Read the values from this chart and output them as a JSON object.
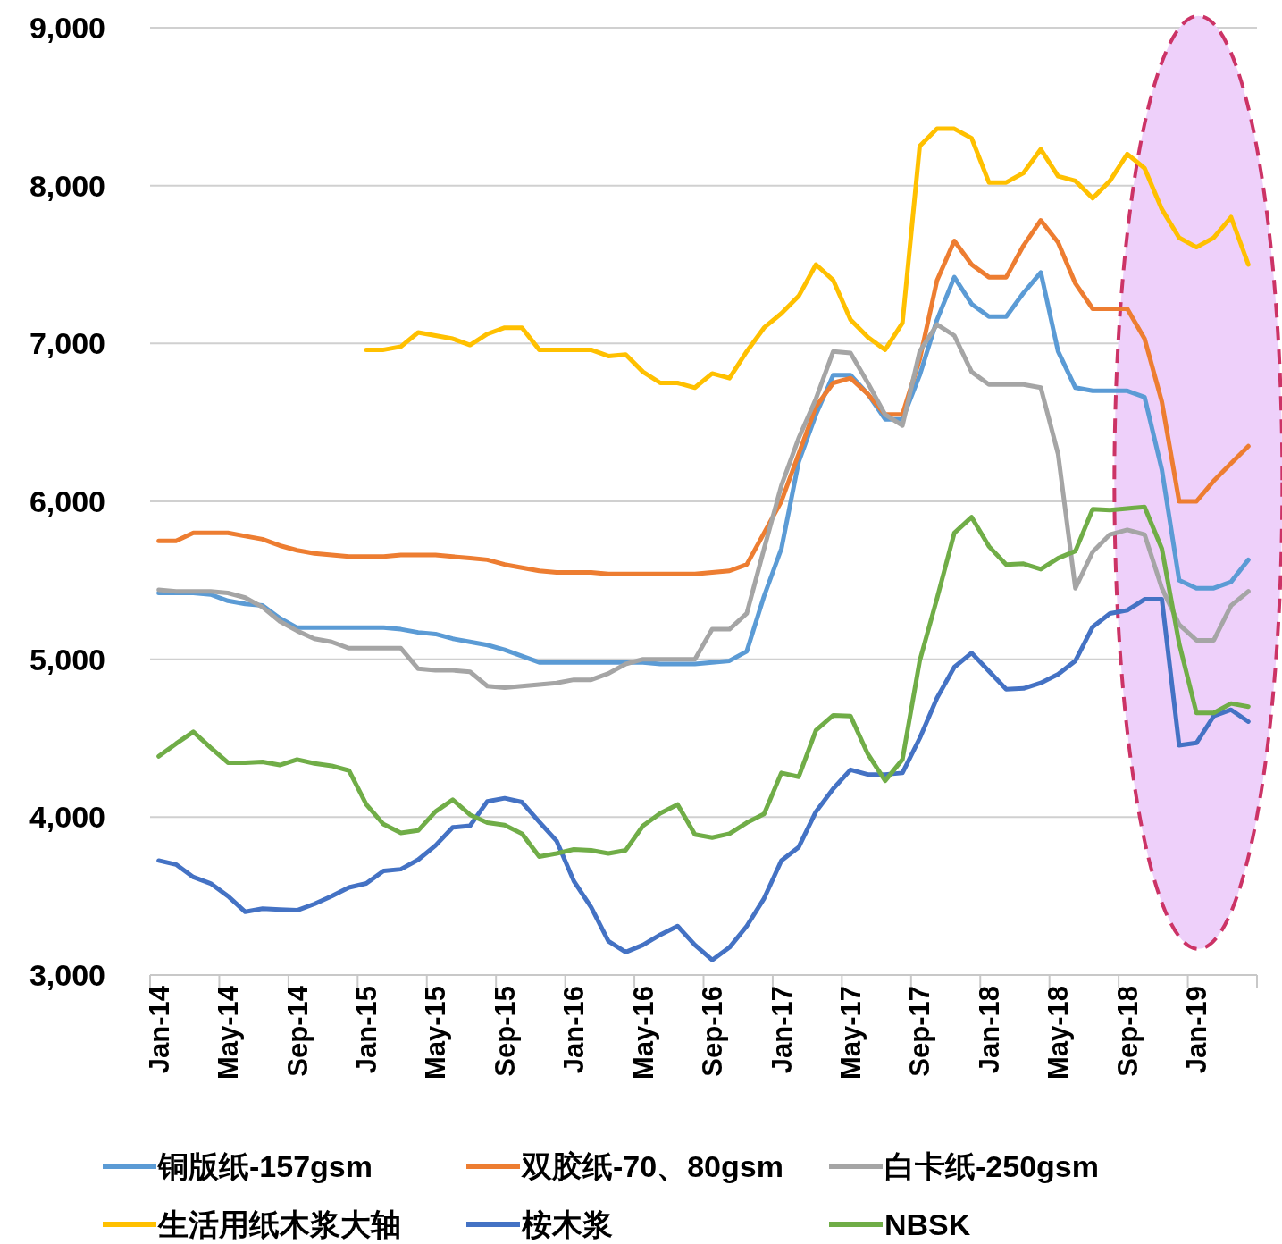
{
  "chart_data": {
    "type": "line",
    "categories": [
      "Jan-14",
      null,
      null,
      null,
      "May-14",
      null,
      null,
      null,
      "Sep-14",
      null,
      null,
      null,
      "Jan-15",
      null,
      null,
      null,
      "May-15",
      null,
      null,
      null,
      "Sep-15",
      null,
      null,
      null,
      "Jan-16",
      null,
      null,
      null,
      "May-16",
      null,
      null,
      null,
      "Sep-16",
      null,
      null,
      null,
      "Jan-17",
      null,
      null,
      null,
      "May-17",
      null,
      null,
      null,
      "Sep-17",
      null,
      null,
      null,
      "Jan-18",
      null,
      null,
      null,
      "May-18",
      null,
      null,
      null,
      "Sep-18",
      null,
      null,
      null,
      "Jan-19",
      null,
      null,
      null
    ],
    "ylim": [
      3000,
      9000
    ],
    "yticks": [
      {
        "value": 3000,
        "label": "3,000"
      },
      {
        "value": 4000,
        "label": "4,000"
      },
      {
        "value": 5000,
        "label": "5,000"
      },
      {
        "value": 6000,
        "label": "6,000"
      },
      {
        "value": 7000,
        "label": "7,000"
      },
      {
        "value": 8000,
        "label": "8,000"
      },
      {
        "value": 9000,
        "label": "9,000"
      }
    ],
    "grid": "y",
    "legend": "bottom",
    "series": [
      {
        "name": "铜版纸-157gsm",
        "color": "#5b9bd5",
        "values": [
          5420,
          5420,
          5420,
          5410,
          5370,
          5350,
          5340,
          5260,
          5200,
          5200,
          5200,
          5200,
          5200,
          5200,
          5190,
          5170,
          5160,
          5130,
          5110,
          5090,
          5060,
          5020,
          4980,
          4980,
          4980,
          4980,
          4980,
          4980,
          4980,
          4970,
          4970,
          4970,
          4980,
          4990,
          5050,
          5400,
          5700,
          6250,
          6550,
          6800,
          6800,
          6680,
          6520,
          6520,
          6800,
          7150,
          7420,
          7250,
          7170,
          7170,
          7320,
          7450,
          6950,
          6720,
          6700,
          6700,
          6700,
          6660,
          6200,
          5500,
          5450,
          5450,
          5490,
          5630
        ]
      },
      {
        "name": "双胶纸-70、80gsm",
        "color": "#ed7d31",
        "values": [
          5750,
          5750,
          5800,
          5800,
          5800,
          5780,
          5760,
          5720,
          5690,
          5670,
          5660,
          5650,
          5650,
          5650,
          5660,
          5660,
          5660,
          5650,
          5640,
          5630,
          5600,
          5580,
          5560,
          5550,
          5550,
          5550,
          5540,
          5540,
          5540,
          5540,
          5540,
          5540,
          5550,
          5560,
          5600,
          5800,
          6000,
          6300,
          6600,
          6750,
          6780,
          6680,
          6550,
          6550,
          6900,
          7400,
          7650,
          7500,
          7420,
          7420,
          7620,
          7780,
          7640,
          7380,
          7220,
          7220,
          7220,
          7030,
          6630,
          6000,
          6000,
          6130,
          6240,
          6350
        ]
      },
      {
        "name": "白卡纸-250gsm",
        "color": "#a5a5a5",
        "values": [
          5440,
          5430,
          5430,
          5430,
          5420,
          5390,
          5330,
          5240,
          5180,
          5130,
          5110,
          5070,
          5070,
          5070,
          5070,
          4940,
          4930,
          4930,
          4920,
          4830,
          4820,
          4830,
          4840,
          4850,
          4870,
          4870,
          4910,
          4970,
          5000,
          5000,
          5000,
          5000,
          5190,
          5190,
          5290,
          5700,
          6100,
          6400,
          6650,
          6950,
          6940,
          6750,
          6550,
          6480,
          6950,
          7120,
          7050,
          6820,
          6740,
          6740,
          6740,
          6720,
          6300,
          5450,
          5680,
          5790,
          5820,
          5790,
          5450,
          5220,
          5120,
          5120,
          5340,
          5430
        ]
      },
      {
        "name": "生活用纸木浆大轴",
        "color": "#ffc000",
        "values": [
          null,
          null,
          null,
          null,
          null,
          null,
          null,
          null,
          null,
          null,
          null,
          null,
          6960,
          6960,
          6980,
          7070,
          7050,
          7030,
          6990,
          7060,
          7100,
          7100,
          6960,
          6960,
          6960,
          6960,
          6920,
          6930,
          6820,
          6750,
          6750,
          6720,
          6810,
          6780,
          6950,
          7100,
          7190,
          7300,
          7500,
          7400,
          7150,
          7040,
          6960,
          7130,
          8250,
          8360,
          8360,
          8300,
          8020,
          8020,
          8080,
          8230,
          8060,
          8030,
          7920,
          8030,
          8200,
          8110,
          7850,
          7670,
          7610,
          7670,
          7800,
          7500
        ]
      },
      {
        "name": "桉木浆",
        "color": "#4472c4",
        "values": [
          3725,
          3700,
          3620,
          3580,
          3500,
          3400,
          3420,
          3415,
          3410,
          3450,
          3500,
          3555,
          3580,
          3660,
          3670,
          3730,
          3820,
          3935,
          3945,
          4100,
          4120,
          4095,
          3970,
          3850,
          3595,
          3430,
          3215,
          3145,
          3190,
          3255,
          3310,
          3190,
          3095,
          3175,
          3310,
          3485,
          3725,
          3810,
          4035,
          4180,
          4300,
          4270,
          4270,
          4280,
          4500,
          4755,
          4950,
          5040,
          4925,
          4810,
          4815,
          4850,
          4905,
          4990,
          5205,
          5290,
          5310,
          5380,
          5380,
          4455,
          4470,
          4640,
          4680,
          4605
        ]
      },
      {
        "name": "NBSK",
        "color": "#70ad47",
        "values": [
          4385,
          4465,
          4540,
          4440,
          4345,
          4345,
          4350,
          4330,
          4365,
          4340,
          4325,
          4295,
          4080,
          3955,
          3900,
          3915,
          4035,
          4110,
          4015,
          3965,
          3950,
          3895,
          3750,
          3770,
          3795,
          3790,
          3770,
          3790,
          3945,
          4025,
          4080,
          3890,
          3870,
          3895,
          3965,
          4020,
          4280,
          4255,
          4550,
          4645,
          4640,
          4400,
          4230,
          4365,
          4990,
          5385,
          5800,
          5900,
          5715,
          5600,
          5605,
          5570,
          5640,
          5685,
          5950,
          5945,
          5955,
          5965,
          5700,
          5100,
          4660,
          4660,
          4720,
          4700
        ]
      }
    ]
  }
}
